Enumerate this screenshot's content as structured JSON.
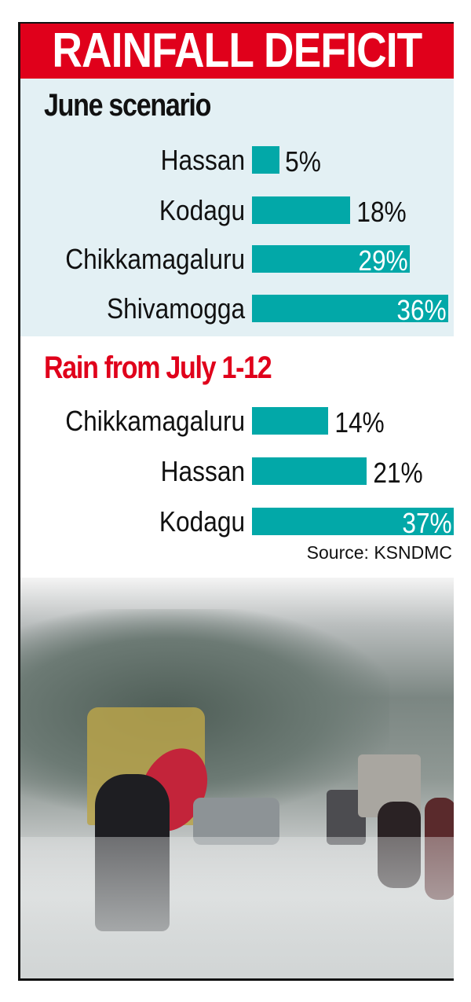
{
  "title": "RAINFALL DEFICIT",
  "colors": {
    "header": "#e0001b",
    "bar": "#02a8a8",
    "june_bg": "#e3f0f4",
    "july_title": "#e0001b"
  },
  "chart_data": [
    {
      "type": "bar",
      "orientation": "horizontal",
      "title": "June scenario",
      "categories": [
        "Hassan",
        "Kodagu",
        "Chikkamagaluru",
        "Shivamogga"
      ],
      "values": [
        5,
        18,
        29,
        36
      ],
      "labels": [
        "5%",
        "18%",
        "29%",
        "36%"
      ],
      "unit": "%"
    },
    {
      "type": "bar",
      "orientation": "horizontal",
      "title": "Rain from July 1-12",
      "categories": [
        "Chikkamagaluru",
        "Hassan",
        "Kodagu"
      ],
      "values": [
        14,
        21,
        37
      ],
      "labels": [
        "14%",
        "21%",
        "37%"
      ],
      "unit": "%"
    }
  ],
  "source": "Source: KSNDMC"
}
